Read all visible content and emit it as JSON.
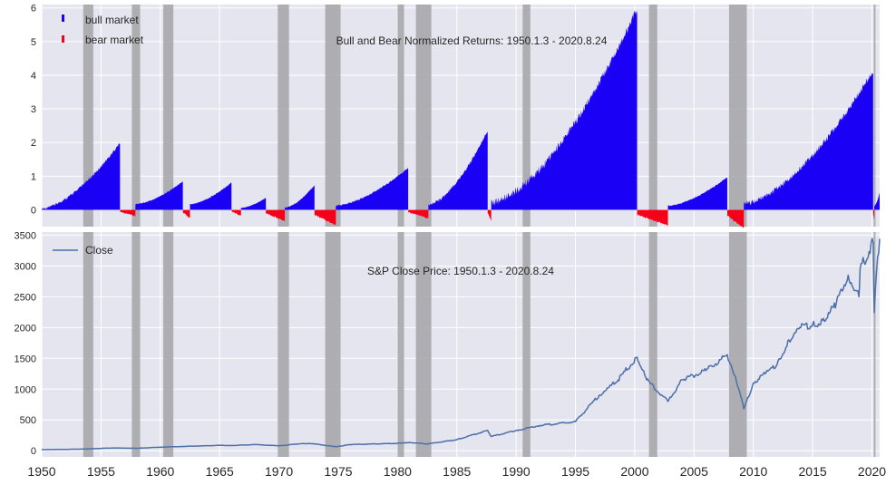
{
  "chart_data": [
    {
      "type": "bar",
      "title": "Bull and Bear Normalized Returns: 1950.1.3 - 2020.8.24",
      "xlabel": "",
      "ylabel": "",
      "xlim": [
        1950,
        2020.65
      ],
      "ylim": [
        -0.5,
        6.1
      ],
      "yticks": [
        0,
        1,
        2,
        3,
        4,
        5,
        6
      ],
      "grid": true,
      "legend": {
        "placement": "top-left",
        "entries": [
          "bull market",
          "bear market"
        ]
      },
      "colors": {
        "bull": "#1a00f5",
        "bear": "#f5001a",
        "background": "#e5e5ef",
        "recession": "#a9a9ad"
      },
      "series": [
        {
          "name": "bull market",
          "segments": [
            {
              "start": 1950.0,
              "end": 1956.6,
              "peak": 1.95,
              "base": 0.0
            },
            {
              "start": 1957.9,
              "end": 1961.9,
              "peak": 0.83,
              "base": 0.15
            },
            {
              "start": 1962.5,
              "end": 1966.0,
              "peak": 0.8,
              "base": 0.15
            },
            {
              "start": 1966.8,
              "end": 1968.9,
              "peak": 0.35,
              "base": 0.05
            },
            {
              "start": 1970.5,
              "end": 1973.0,
              "peak": 0.72,
              "base": 0.05
            },
            {
              "start": 1974.8,
              "end": 1980.9,
              "peak": 1.22,
              "base": 0.1
            },
            {
              "start": 1982.6,
              "end": 1987.6,
              "peak": 2.3,
              "base": 0.1
            },
            {
              "start": 1987.9,
              "end": 2000.2,
              "peak": 5.85,
              "base": 0.1
            },
            {
              "start": 2002.8,
              "end": 2007.8,
              "peak": 0.95,
              "base": 0.1
            },
            {
              "start": 2009.2,
              "end": 2020.1,
              "peak": 4.05,
              "base": 0.1
            },
            {
              "start": 2020.2,
              "end": 2020.65,
              "peak": 0.5,
              "base": 0.1
            }
          ]
        },
        {
          "name": "bear market",
          "segments": [
            {
              "start": 1956.6,
              "end": 1957.9,
              "trough": -0.22
            },
            {
              "start": 1961.9,
              "end": 1962.5,
              "trough": -0.28
            },
            {
              "start": 1966.0,
              "end": 1966.8,
              "trough": -0.2
            },
            {
              "start": 1968.9,
              "end": 1970.5,
              "trough": -0.36
            },
            {
              "start": 1973.0,
              "end": 1974.8,
              "trough": -0.48
            },
            {
              "start": 1980.9,
              "end": 1982.6,
              "trough": -0.27
            },
            {
              "start": 1987.6,
              "end": 1987.9,
              "trough": -0.34
            },
            {
              "start": 2000.2,
              "end": 2002.8,
              "trough": -0.49
            },
            {
              "start": 2007.8,
              "end": 2009.2,
              "trough": -0.57
            },
            {
              "start": 2020.1,
              "end": 2020.2,
              "trough": -0.34
            }
          ]
        }
      ]
    },
    {
      "type": "line",
      "title": "S&P Close Price: 1950.1.3 - 2020.8.24",
      "xlabel": "",
      "ylabel": "",
      "xlim": [
        1950,
        2020.65
      ],
      "ylim": [
        -100,
        3550
      ],
      "yticks": [
        0,
        500,
        1000,
        1500,
        2000,
        2500,
        3000,
        3500
      ],
      "xticks": [
        1950,
        1955,
        1960,
        1965,
        1970,
        1975,
        1980,
        1985,
        1990,
        1995,
        2000,
        2005,
        2010,
        2015,
        2020
      ],
      "grid": true,
      "legend": {
        "placement": "top-left",
        "entries": [
          "Close"
        ]
      },
      "colors": {
        "line": "#4c6fa8"
      },
      "series": [
        {
          "name": "Close",
          "x": [
            1950,
            1953,
            1956,
            1958,
            1960,
            1962,
            1965,
            1966,
            1968,
            1970,
            1972,
            1973,
            1974.8,
            1976,
            1980,
            1981,
            1982.5,
            1985,
            1987.6,
            1987.9,
            1990,
            1992,
            1995,
            1997,
            1998.6,
            1999,
            2000.2,
            2001,
            2002.8,
            2004,
            2006,
            2007.8,
            2008.5,
            2009.2,
            2010,
            2011,
            2012,
            2013,
            2014,
            2015,
            2016,
            2017,
            2018,
            2018.9,
            2019,
            2020.1,
            2020.2,
            2020.4,
            2020.65
          ],
          "y": [
            17,
            25,
            45,
            40,
            58,
            70,
            88,
            85,
            100,
            80,
            118,
            110,
            65,
            100,
            120,
            135,
            110,
            180,
            330,
            230,
            330,
            410,
            470,
            900,
            1150,
            1250,
            1520,
            1150,
            800,
            1150,
            1300,
            1560,
            1200,
            680,
            1100,
            1250,
            1400,
            1800,
            2000,
            2050,
            2100,
            2400,
            2850,
            2500,
            2950,
            3380,
            2240,
            2950,
            3440
          ]
        }
      ]
    }
  ],
  "recessions": [
    [
      1953.5,
      1954.35
    ],
    [
      1957.6,
      1958.3
    ],
    [
      1960.25,
      1961.1
    ],
    [
      1969.9,
      1970.85
    ],
    [
      1973.9,
      1975.2
    ],
    [
      1980.0,
      1980.55
    ],
    [
      1981.55,
      1982.85
    ],
    [
      1990.55,
      1991.2
    ],
    [
      2001.2,
      2001.9
    ],
    [
      2007.95,
      2009.45
    ],
    [
      2020.15,
      2020.3
    ]
  ]
}
